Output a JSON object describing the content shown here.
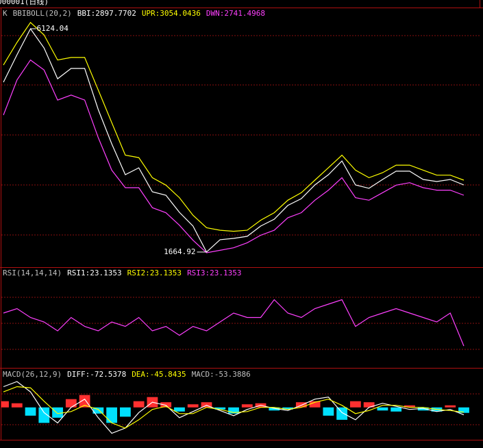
{
  "header": {
    "title": "000001(日线)"
  },
  "chart_data": [
    {
      "type": "line",
      "indicator": "K",
      "label": "BBIBOLL(20,2)",
      "readouts": [
        {
          "text": "BBI:2897.7702",
          "color": "#ffffff"
        },
        {
          "text": "UPR:3054.0436",
          "color": "#ffff00"
        },
        {
          "text": "DWN:2741.4968",
          "color": "#ff40ff"
        }
      ],
      "ylim": [
        1363,
        6534
      ],
      "series": [
        {
          "color": "#ffffff",
          "values": [
            5057,
            5604,
            6124.04,
            5741,
            5125,
            5331,
            5331,
            4510,
            3826,
            3210,
            3347,
            2868,
            2800,
            2458,
            2184,
            1664.92,
            1911,
            1938,
            1979,
            2184,
            2321,
            2595,
            2731,
            3005,
            3210,
            3484,
            3005,
            2937,
            3114,
            3279,
            3279,
            3114,
            3073,
            3114,
            3005
          ]
        },
        {
          "color": "#ffff00",
          "values": [
            5400,
            5850,
            6250,
            6000,
            5500,
            5550,
            5550,
            4900,
            4250,
            3600,
            3550,
            3150,
            3000,
            2750,
            2400,
            2150,
            2100,
            2080,
            2100,
            2300,
            2450,
            2700,
            2850,
            3100,
            3350,
            3600,
            3300,
            3150,
            3250,
            3400,
            3400,
            3300,
            3200,
            3200,
            3100
          ]
        },
        {
          "color": "#ff40ff",
          "values": [
            4400,
            5100,
            5500,
            5300,
            4700,
            4800,
            4700,
            3950,
            3300,
            2950,
            2950,
            2550,
            2450,
            2200,
            1900,
            1650,
            1700,
            1750,
            1850,
            2000,
            2100,
            2350,
            2450,
            2700,
            2900,
            3150,
            2750,
            2700,
            2850,
            3000,
            3050,
            2950,
            2900,
            2900,
            2800
          ]
        }
      ],
      "annotations": [
        {
          "text": "6124.04",
          "x": 2,
          "y": 6124.04,
          "side": "right"
        },
        {
          "text": "1664.92",
          "x": 15,
          "y": 1664.92,
          "side": "left"
        }
      ]
    },
    {
      "type": "line",
      "label": "RSI(14,14,14)",
      "readouts": [
        {
          "text": "RSI1:23.1353",
          "color": "#ffffff"
        },
        {
          "text": "RSI2:23.1353",
          "color": "#ffff00"
        },
        {
          "text": "RSI3:23.1353",
          "color": "#ff40ff"
        }
      ],
      "ylim": [
        0,
        100
      ],
      "series": [
        {
          "color": "#ff40ff",
          "values": [
            60,
            65,
            55,
            50,
            40,
            55,
            45,
            40,
            50,
            45,
            55,
            40,
            45,
            35,
            45,
            40,
            50,
            60,
            55,
            55,
            75,
            60,
            55,
            65,
            70,
            75,
            45,
            55,
            60,
            65,
            60,
            55,
            50,
            60,
            23
          ]
        }
      ]
    },
    {
      "type": "macd",
      "label": "MACD(26,12,9)",
      "readouts": [
        {
          "text": "DIFF:-72.5378",
          "color": "#ffffff"
        },
        {
          "text": "DEA:-45.8435",
          "color": "#ffff00"
        },
        {
          "text": "MACD:-53.3886",
          "color": "#c0c0c0"
        }
      ],
      "ylim": [
        -300,
        250
      ],
      "up_color": "#ff3030",
      "down_color": "#00e0ff",
      "values": [
        60,
        40,
        -80,
        -150,
        -100,
        80,
        120,
        -60,
        -150,
        -90,
        60,
        100,
        50,
        -40,
        30,
        50,
        -20,
        -60,
        30,
        40,
        -30,
        -20,
        50,
        60,
        -80,
        -120,
        60,
        50,
        -30,
        -40,
        20,
        -30,
        -40,
        20,
        -53
      ],
      "series": [
        {
          "color": "#ffffff",
          "values": [
            200,
            250,
            150,
            -50,
            -150,
            0,
            80,
            -100,
            -250,
            -200,
            -50,
            50,
            20,
            -100,
            -40,
            20,
            -30,
            -80,
            -20,
            20,
            -10,
            -30,
            20,
            80,
            100,
            -50,
            -120,
            0,
            40,
            10,
            -20,
            -10,
            -40,
            -20,
            -72
          ]
        },
        {
          "color": "#ffff00",
          "values": [
            150,
            200,
            190,
            60,
            -60,
            -40,
            20,
            -20,
            -150,
            -200,
            -120,
            -20,
            10,
            -60,
            -60,
            0,
            -20,
            -50,
            -40,
            0,
            0,
            -20,
            0,
            50,
            80,
            20,
            -60,
            -30,
            20,
            20,
            0,
            0,
            -20,
            -30,
            -46
          ]
        }
      ]
    }
  ]
}
